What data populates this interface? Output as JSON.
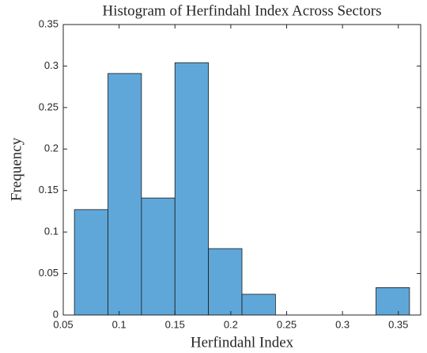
{
  "chart_data": {
    "type": "histogram",
    "title": "Histogram of Herfindahl Index Across Sectors",
    "x_label": "Herfindahl Index",
    "y_label": "Frequency",
    "bins": [
      0.06,
      0.09,
      0.12,
      0.15,
      0.18,
      0.21,
      0.24,
      0.27,
      0.3,
      0.33,
      0.36
    ],
    "values": [
      0.127,
      0.291,
      0.141,
      0.304,
      0.08,
      0.025,
      0,
      0,
      0,
      0.033
    ],
    "color": "#5fa7d9",
    "xlim": [
      0.05,
      0.37
    ],
    "xticks": [
      0.05,
      0.1,
      0.15,
      0.2,
      0.25,
      0.3,
      0.35
    ],
    "ylim": [
      0,
      0.35
    ],
    "yticks": [
      0,
      0.05,
      0.1,
      0.15,
      0.2,
      0.25,
      0.3,
      0.35
    ]
  }
}
